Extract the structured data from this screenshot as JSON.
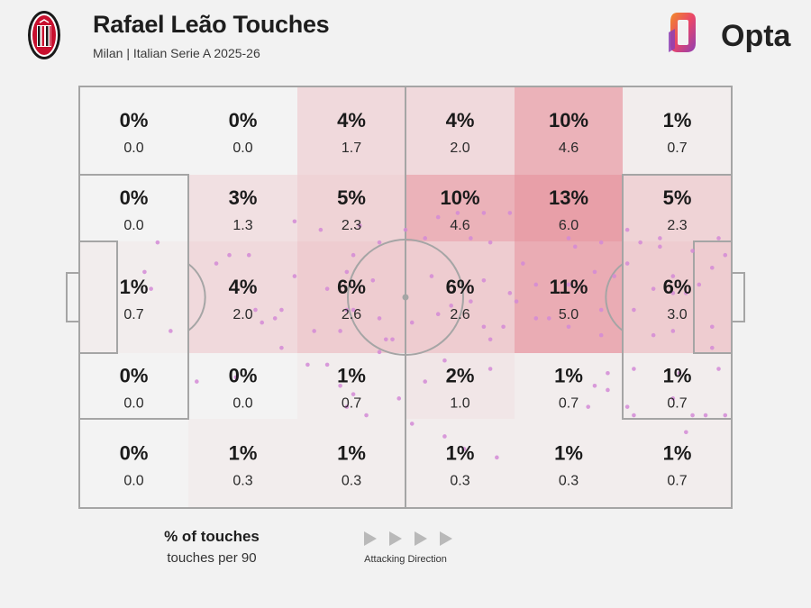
{
  "header": {
    "title": "Rafael Leão Touches",
    "subtitle": "Milan | Italian Serie A 2025-26",
    "brand": "Opta"
  },
  "legend": {
    "primary_label": "% of touches",
    "secondary_label": "touches per 90",
    "direction_label": "Attacking Direction"
  },
  "colors": {
    "background": "#f2f2f2",
    "heat_max": "#e26b7a",
    "dots": "#d48ad6",
    "lines": "#a5a5a5",
    "crest_red": "#c8102e",
    "opta_orange": "#f28c28",
    "opta_purple": "#8e3fb5"
  },
  "chart_data": {
    "type": "heatmap",
    "description_columns": 6,
    "description_rows": 5,
    "cells": [
      [
        {
          "pct": "0%",
          "per90": "0.0",
          "value": 0
        },
        {
          "pct": "0%",
          "per90": "0.0",
          "value": 0
        },
        {
          "pct": "4%",
          "per90": "1.7",
          "value": 4
        },
        {
          "pct": "4%",
          "per90": "2.0",
          "value": 4
        },
        {
          "pct": "10%",
          "per90": "4.6",
          "value": 10
        },
        {
          "pct": "1%",
          "per90": "0.7",
          "value": 1
        }
      ],
      [
        {
          "pct": "0%",
          "per90": "0.0",
          "value": 0
        },
        {
          "pct": "3%",
          "per90": "1.3",
          "value": 3
        },
        {
          "pct": "5%",
          "per90": "2.3",
          "value": 5
        },
        {
          "pct": "10%",
          "per90": "4.6",
          "value": 10
        },
        {
          "pct": "13%",
          "per90": "6.0",
          "value": 13
        },
        {
          "pct": "5%",
          "per90": "2.3",
          "value": 5
        }
      ],
      [
        {
          "pct": "1%",
          "per90": "0.7",
          "value": 1
        },
        {
          "pct": "4%",
          "per90": "2.0",
          "value": 4
        },
        {
          "pct": "6%",
          "per90": "2.6",
          "value": 6
        },
        {
          "pct": "6%",
          "per90": "2.6",
          "value": 6
        },
        {
          "pct": "11%",
          "per90": "5.0",
          "value": 11
        },
        {
          "pct": "6%",
          "per90": "3.0",
          "value": 6
        }
      ],
      [
        {
          "pct": "0%",
          "per90": "0.0",
          "value": 0
        },
        {
          "pct": "0%",
          "per90": "0.0",
          "value": 0
        },
        {
          "pct": "1%",
          "per90": "0.7",
          "value": 1
        },
        {
          "pct": "2%",
          "per90": "1.0",
          "value": 2
        },
        {
          "pct": "1%",
          "per90": "0.7",
          "value": 1
        },
        {
          "pct": "1%",
          "per90": "0.7",
          "value": 1
        }
      ],
      [
        {
          "pct": "0%",
          "per90": "0.0",
          "value": 0
        },
        {
          "pct": "1%",
          "per90": "0.3",
          "value": 1
        },
        {
          "pct": "1%",
          "per90": "0.3",
          "value": 1
        },
        {
          "pct": "1%",
          "per90": "0.3",
          "value": 1
        },
        {
          "pct": "1%",
          "per90": "0.3",
          "value": 1
        },
        {
          "pct": "1%",
          "per90": "0.7",
          "value": 1
        }
      ]
    ],
    "touches": [
      [
        43,
        33
      ],
      [
        46,
        37
      ],
      [
        60,
        36
      ],
      [
        80,
        37
      ],
      [
        82,
        45
      ],
      [
        80,
        53
      ],
      [
        62,
        57
      ],
      [
        86,
        37
      ],
      [
        91,
        45
      ],
      [
        79,
        44
      ],
      [
        84,
        42
      ],
      [
        68,
        42
      ],
      [
        75,
        47
      ],
      [
        65,
        57
      ],
      [
        67,
        51
      ],
      [
        62,
        46
      ],
      [
        63,
        60
      ],
      [
        63,
        67
      ],
      [
        89,
        38
      ],
      [
        91,
        49
      ],
      [
        94,
        39
      ],
      [
        88,
        59
      ],
      [
        91,
        58
      ],
      [
        92,
        68
      ],
      [
        81,
        68
      ],
      [
        81,
        72
      ],
      [
        79,
        71
      ],
      [
        78,
        76
      ],
      [
        85,
        78
      ],
      [
        84,
        76
      ],
      [
        91,
        74
      ],
      [
        93,
        82
      ],
      [
        94,
        78
      ],
      [
        96,
        78
      ],
      [
        99,
        78
      ],
      [
        98,
        67
      ],
      [
        97,
        62
      ],
      [
        97,
        57
      ],
      [
        98,
        36
      ],
      [
        99,
        40
      ],
      [
        97,
        43
      ],
      [
        95,
        47
      ],
      [
        88,
        48
      ],
      [
        93,
        49
      ],
      [
        85,
        53
      ],
      [
        80,
        59
      ],
      [
        75,
        57
      ],
      [
        72,
        55
      ],
      [
        70,
        55
      ],
      [
        70,
        47
      ],
      [
        66,
        49
      ],
      [
        60,
        51
      ],
      [
        57,
        52
      ],
      [
        55,
        54
      ],
      [
        51,
        56
      ],
      [
        48,
        60
      ],
      [
        46,
        55
      ],
      [
        42,
        53
      ],
      [
        41,
        44
      ],
      [
        38,
        48
      ],
      [
        36,
        58
      ],
      [
        35,
        66
      ],
      [
        31,
        62
      ],
      [
        33,
        45
      ],
      [
        26,
        40
      ],
      [
        23,
        40
      ],
      [
        21,
        42
      ],
      [
        12,
        37
      ],
      [
        10,
        44
      ],
      [
        11,
        48
      ],
      [
        14,
        58
      ],
      [
        18,
        70
      ],
      [
        24,
        69
      ],
      [
        37,
        34
      ],
      [
        42,
        40
      ],
      [
        45,
        46
      ],
      [
        27,
        53
      ],
      [
        28,
        56
      ],
      [
        40,
        71
      ],
      [
        42,
        73
      ],
      [
        41,
        76
      ],
      [
        44,
        78
      ],
      [
        47,
        60
      ],
      [
        41,
        53
      ],
      [
        40,
        58
      ],
      [
        53,
        36
      ],
      [
        50,
        34
      ],
      [
        55,
        31
      ],
      [
        58,
        30
      ],
      [
        62,
        30
      ],
      [
        66,
        30
      ],
      [
        75,
        36
      ],
      [
        76,
        38
      ],
      [
        84,
        34
      ],
      [
        89,
        36
      ],
      [
        85,
        67
      ],
      [
        63,
        37
      ],
      [
        54,
        45
      ],
      [
        46,
        63
      ],
      [
        38,
        66
      ],
      [
        53,
        70
      ],
      [
        56,
        65
      ],
      [
        51,
        80
      ],
      [
        33,
        32
      ],
      [
        31,
        53
      ],
      [
        30,
        55
      ],
      [
        49,
        74
      ],
      [
        56,
        83
      ],
      [
        59,
        86
      ],
      [
        64,
        88
      ]
    ]
  }
}
